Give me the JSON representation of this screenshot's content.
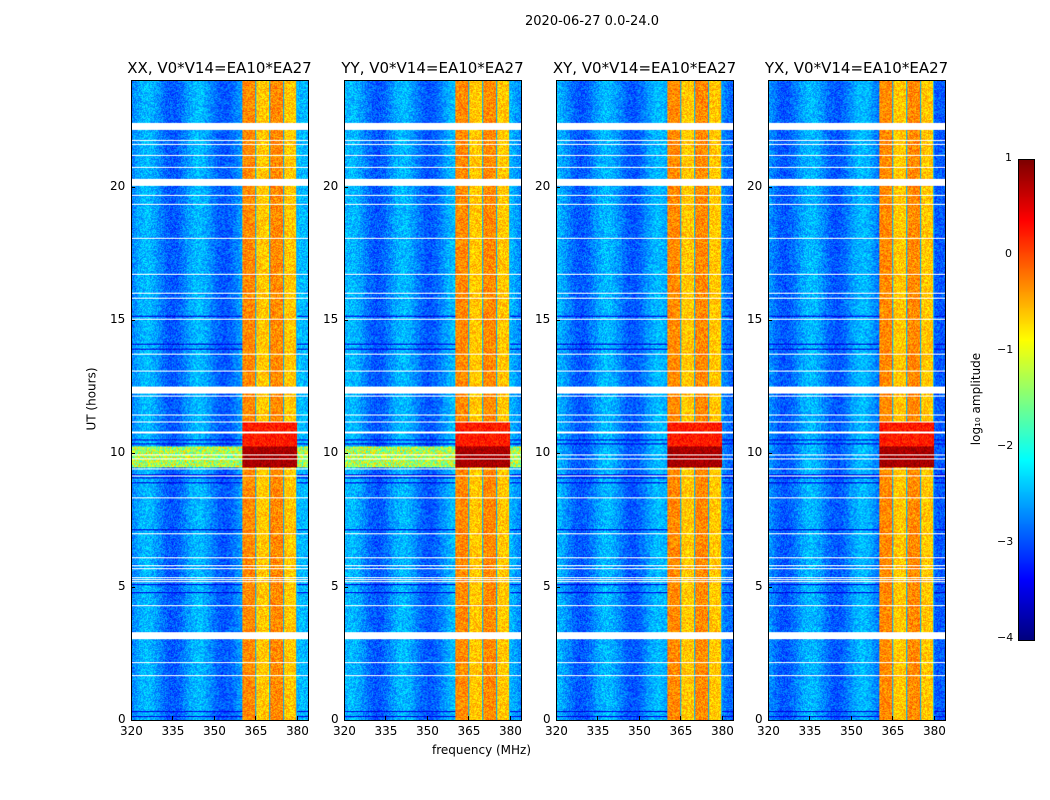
{
  "chart_data": {
    "type": "heatmap",
    "title": "2020-06-27 0.0-24.0",
    "xlabel": "frequency (MHz)",
    "ylabel": "UT (hours)",
    "xlim": [
      320,
      384
    ],
    "ylim": [
      0,
      24
    ],
    "xticks": [
      "320",
      "335",
      "350",
      "365",
      "380"
    ],
    "yticks": [
      "0",
      "5",
      "10",
      "15",
      "20"
    ],
    "panels": [
      {
        "title": "XX, V0*V14=EA10*EA27"
      },
      {
        "title": "YY, V0*V14=EA10*EA27"
      },
      {
        "title": "XY, V0*V14=EA10*EA27"
      },
      {
        "title": "YX, V0*V14=EA10*EA27"
      }
    ],
    "colorbar": {
      "label": "log₁₀ amplitude",
      "range": [
        -4,
        1
      ],
      "ticks": [
        "1",
        "0",
        "−1",
        "−2",
        "−3",
        "−4"
      ],
      "colormap": "jet"
    },
    "rfi_band_mhz": [
      360,
      380
    ],
    "strong_rfi_hours": [
      9.5,
      10.3
    ],
    "flagged_hours": [
      3.2,
      12.4,
      20.2,
      22.3
    ]
  }
}
